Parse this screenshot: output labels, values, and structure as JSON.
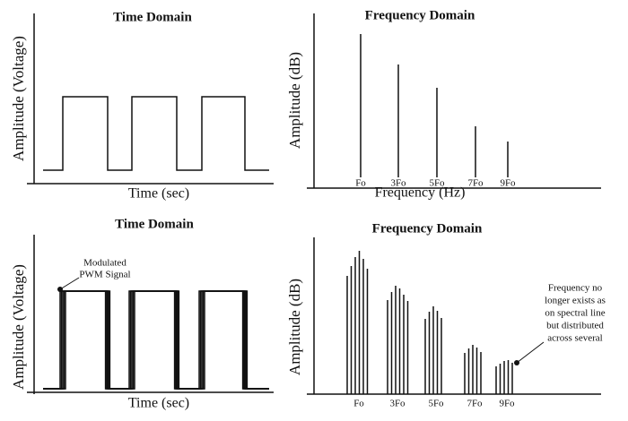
{
  "panels": [
    {
      "title": "Time Domain",
      "y_label": "Amplitude (Voltage)",
      "x_label": "Time (sec)"
    },
    {
      "title": "Frequency Domain",
      "y_label": "Amplitude (dB)",
      "x_label": "Frequency (Hz)",
      "x_ticks": [
        "Fo",
        "3Fo",
        "5Fo",
        "7Fo",
        "9Fo"
      ]
    },
    {
      "title": "Time Domain",
      "y_label": "Amplitude (Voltage)",
      "x_label": "Time (sec)",
      "annotation": [
        "Modulated",
        "PWM Signal"
      ]
    },
    {
      "title": "Frequency Domain",
      "y_label": "Amplitude (dB)",
      "x_ticks": [
        "Fo",
        "3Fo",
        "5Fo",
        "7Fo",
        "9Fo"
      ],
      "annotation": [
        "Frequency no",
        "longer exists as",
        "on spectral line",
        "but distributed",
        "across several"
      ]
    }
  ]
}
